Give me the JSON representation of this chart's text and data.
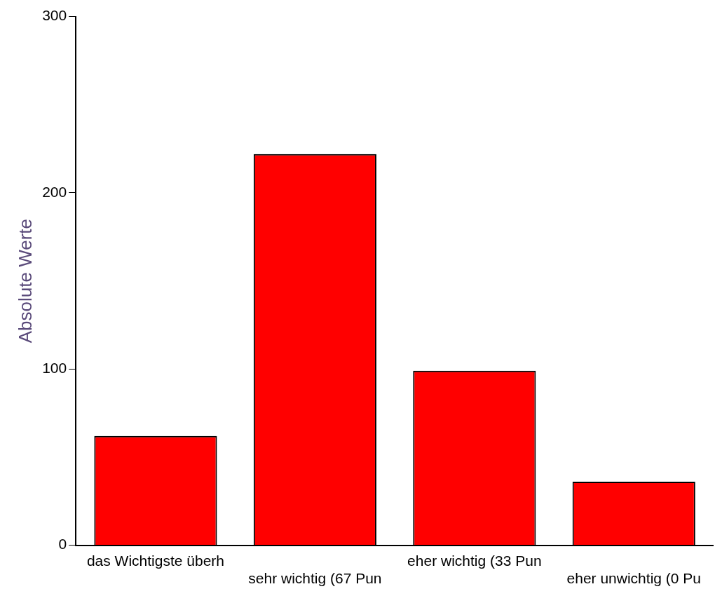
{
  "chart_data": {
    "type": "bar",
    "ylabel": "Absolute Werte",
    "categories": [
      "das Wichtigste überh",
      "sehr wichtig (67 Pun",
      "eher wichtig (33 Pun",
      "eher unwichtig (0 Pu"
    ],
    "values": [
      62,
      222,
      99,
      36
    ],
    "color": "#ff0000",
    "ylim": [
      0,
      300
    ],
    "yticks": [
      0,
      100,
      200,
      300
    ],
    "grid": false,
    "legend": false
  }
}
